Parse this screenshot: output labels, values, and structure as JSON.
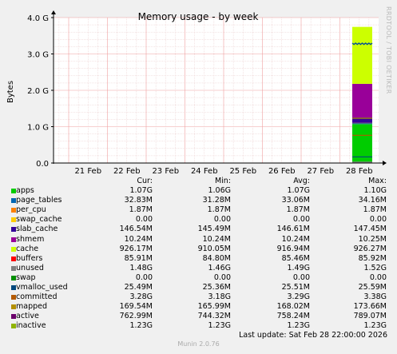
{
  "chart_data": {
    "type": "area",
    "title": "Memory usage - by week",
    "ylabel": "Bytes",
    "ylim": [
      0,
      4
    ],
    "yticks": [
      "0.0",
      "1.0 G",
      "2.0 G",
      "3.0 G",
      "4.0 G"
    ],
    "xticks": [
      "21 Feb",
      "22 Feb",
      "23 Feb",
      "24 Feb",
      "25 Feb",
      "26 Feb",
      "27 Feb",
      "28 Feb"
    ],
    "grid": true,
    "data_region": {
      "start": "28 Feb (earlier)",
      "end": "28 Feb 22:00"
    },
    "stack_gb": [
      {
        "name": "apps",
        "color": "#00cc00",
        "value": 1.07
      },
      {
        "name": "page_tables",
        "color": "#0066b3",
        "value": 0.033
      },
      {
        "name": "per_cpu",
        "color": "#ff8000",
        "value": 0.002
      },
      {
        "name": "swap_cache",
        "color": "#ffcc00",
        "value": 0.0
      },
      {
        "name": "slab_cache",
        "color": "#330099",
        "value": 0.147
      },
      {
        "name": "cache",
        "color": "#990099",
        "value": 0.926
      },
      {
        "name": "buffers",
        "color": "#ccff00",
        "value": 0.086
      },
      {
        "name": "unused",
        "color": "#ccff00",
        "value": 1.48
      },
      {
        "name": "swap",
        "color": "#ff0000",
        "value": 0.0
      }
    ],
    "lines_gb": [
      {
        "name": "committed",
        "color": "#004c99",
        "value": 3.28
      },
      {
        "name": "shmem",
        "color": "#008f00",
        "value": 0.01
      },
      {
        "name": "vmalloc_used",
        "color": "#808080",
        "value": 0.025
      },
      {
        "name": "mapped",
        "color": "#00487d",
        "value": 0.17
      },
      {
        "name": "active",
        "color": "#b35a00",
        "value": 0.763
      },
      {
        "name": "inactive",
        "color": "#b38f00",
        "value": 1.23
      }
    ]
  },
  "legend": {
    "headers": {
      "cur": "Cur:",
      "min": "Min:",
      "avg": "Avg:",
      "max": "Max:"
    },
    "rows": [
      {
        "name": "apps",
        "color": "#00cc00",
        "cur": "1.07G",
        "min": "1.06G",
        "avg": "1.07G",
        "max": "1.10G"
      },
      {
        "name": "page_tables",
        "color": "#0066b3",
        "cur": "32.83M",
        "min": "31.28M",
        "avg": "33.06M",
        "max": "34.16M"
      },
      {
        "name": "per_cpu",
        "color": "#ff8000",
        "cur": "1.87M",
        "min": "1.87M",
        "avg": "1.87M",
        "max": "1.87M"
      },
      {
        "name": "swap_cache",
        "color": "#ffcc00",
        "cur": "0.00",
        "min": "0.00",
        "avg": "0.00",
        "max": "0.00"
      },
      {
        "name": "slab_cache",
        "color": "#330099",
        "cur": "146.54M",
        "min": "145.49M",
        "avg": "146.61M",
        "max": "147.45M"
      },
      {
        "name": "shmem",
        "color": "#990099",
        "cur": "10.24M",
        "min": "10.24M",
        "avg": "10.24M",
        "max": "10.25M"
      },
      {
        "name": "cache",
        "color": "#ccff00",
        "cur": "926.17M",
        "min": "910.05M",
        "avg": "916.94M",
        "max": "926.27M"
      },
      {
        "name": "buffers",
        "color": "#ff0000",
        "cur": "85.91M",
        "min": "84.80M",
        "avg": "85.46M",
        "max": "85.92M"
      },
      {
        "name": "unused",
        "color": "#808080",
        "cur": "1.48G",
        "min": "1.46G",
        "avg": "1.49G",
        "max": "1.52G"
      },
      {
        "name": "swap",
        "color": "#008f00",
        "cur": "0.00",
        "min": "0.00",
        "avg": "0.00",
        "max": "0.00"
      },
      {
        "name": "vmalloc_used",
        "color": "#00487d",
        "cur": "25.49M",
        "min": "25.36M",
        "avg": "25.51M",
        "max": "25.59M"
      },
      {
        "name": "committed",
        "color": "#b35a00",
        "cur": "3.28G",
        "min": "3.18G",
        "avg": "3.29G",
        "max": "3.38G"
      },
      {
        "name": "mapped",
        "color": "#b38f00",
        "cur": "169.54M",
        "min": "165.99M",
        "avg": "168.02M",
        "max": "173.66M"
      },
      {
        "name": "active",
        "color": "#6b006b",
        "cur": "762.99M",
        "min": "744.32M",
        "avg": "758.24M",
        "max": "789.07M"
      },
      {
        "name": "inactive",
        "color": "#8fb300",
        "cur": "1.23G",
        "min": "1.23G",
        "avg": "1.23G",
        "max": "1.23G"
      }
    ]
  },
  "last_update": "Last update: Sat Feb 28 22:00:00 2026",
  "footer": "Munin 2.0.76",
  "side_label": "RRDTOOL / TOBI OETIKER"
}
